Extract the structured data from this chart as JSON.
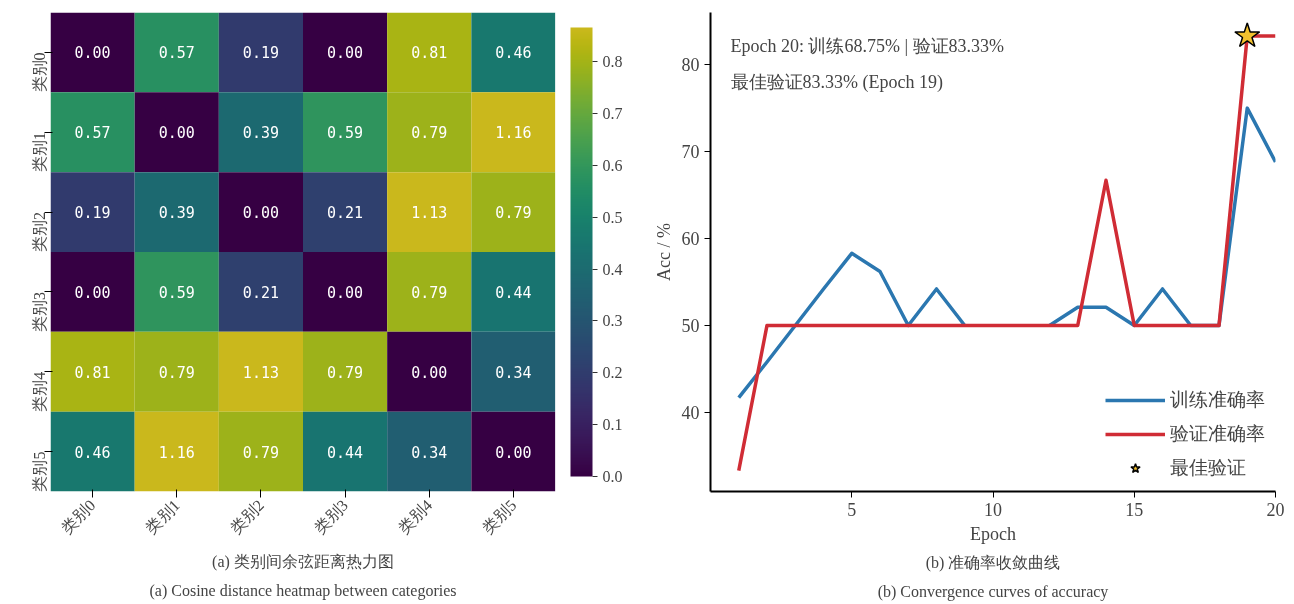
{
  "chart_data": [
    {
      "type": "heatmap",
      "title": "(a) 类别间余弦距离热力图",
      "subtitle": "(a) Cosine distance heatmap between categories",
      "categories": [
        "类别0",
        "类别1",
        "类别2",
        "类别3",
        "类别4",
        "类别5"
      ],
      "y_categories": [
        "类别0",
        "类别1",
        "类别2",
        "类别3",
        "类别4",
        "类别5"
      ],
      "cells": [
        [
          0.0,
          0.57,
          0.19,
          0.0,
          0.81,
          0.46
        ],
        [
          0.57,
          0.0,
          0.39,
          0.59,
          0.79,
          1.16
        ],
        [
          0.19,
          0.39,
          0.0,
          0.21,
          1.13,
          0.79
        ],
        [
          0.0,
          0.59,
          0.21,
          0.0,
          0.79,
          0.44
        ],
        [
          0.81,
          0.79,
          1.13,
          0.79,
          0.0,
          0.34
        ],
        [
          0.46,
          1.16,
          0.79,
          0.44,
          0.34,
          0.0
        ]
      ],
      "cell_labels": [
        [
          "0.00",
          "0.57",
          "0.19",
          "0.00",
          "0.81",
          "0.46"
        ],
        [
          "0.57",
          "0.00",
          "0.39",
          "0.59",
          "0.79",
          "1.16"
        ],
        [
          "0.19",
          "0.39",
          "0.00",
          "0.21",
          "1.13",
          "0.79"
        ],
        [
          "0.00",
          "0.59",
          "0.21",
          "0.00",
          "0.79",
          "0.44"
        ],
        [
          "0.81",
          "0.79",
          "1.13",
          "0.79",
          "0.00",
          "0.34"
        ],
        [
          "0.46",
          "1.16",
          "0.79",
          "0.44",
          "0.34",
          "0.00"
        ]
      ],
      "clim": [
        0,
        0.866
      ],
      "cticks": [
        {
          "value": 0,
          "label": "0.0"
        },
        {
          "value": 0.1,
          "label": "0.1"
        },
        {
          "value": 0.2,
          "label": "0.2"
        },
        {
          "value": 0.3,
          "label": "0.3"
        },
        {
          "value": 0.4,
          "label": "0.4"
        },
        {
          "value": 0.5,
          "label": "0.5"
        },
        {
          "value": 0.6,
          "label": "0.6"
        },
        {
          "value": 0.7,
          "label": "0.7"
        },
        {
          "value": 0.8,
          "label": "0.8"
        }
      ]
    },
    {
      "type": "line",
      "title": "(b) 准确率收敛曲线",
      "subtitle": "(b) Convergence curves of accuracy",
      "xlabel": "Epoch",
      "ylabel": "Acc / %",
      "x": [
        1,
        2,
        3,
        4,
        5,
        6,
        7,
        8,
        9,
        10,
        11,
        12,
        13,
        14,
        15,
        16,
        17,
        18,
        19,
        20
      ],
      "series": [
        {
          "name": "训练准确率",
          "color": "#2b77b0",
          "values": [
            41.7,
            45.8,
            50,
            54.2,
            58.3,
            56.2,
            50,
            54.2,
            50,
            null,
            null,
            50,
            52.1,
            52.1,
            50,
            54.2,
            50,
            50,
            75,
            68.8
          ]
        },
        {
          "name": "验证准确率",
          "color": "#d02c35",
          "values": [
            33.3,
            50,
            50,
            50,
            50,
            50,
            50,
            50,
            50,
            50,
            50,
            50,
            50,
            66.7,
            50,
            50,
            50,
            50,
            83.3,
            83.3
          ]
        },
        {
          "name": "最佳验证",
          "type": "scatter",
          "marker": "star",
          "color": "#f2c12e",
          "x": [
            19
          ],
          "values": [
            83.3
          ]
        }
      ],
      "annotations": [
        "Epoch 20: 训练68.75%  |  验证83.33%",
        "最佳验证83.33% (Epoch 19)"
      ],
      "xlim": [
        0,
        20
      ],
      "ylim": [
        30.9,
        86
      ],
      "xticks": [
        5,
        10,
        15,
        20
      ],
      "yticks": [
        40,
        50,
        60,
        70,
        80
      ],
      "grid": false,
      "legend": "bottom right",
      "line_style": "solid",
      "marker": "none"
    }
  ]
}
